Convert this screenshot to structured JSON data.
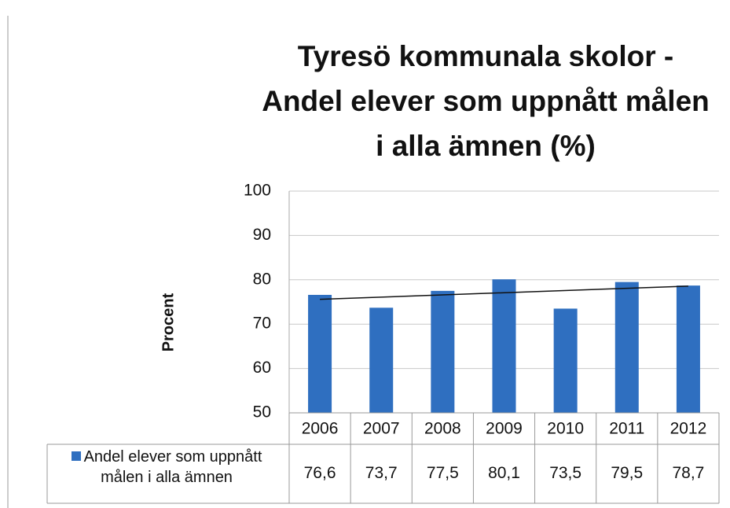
{
  "chart_data": {
    "type": "bar",
    "title": [
      "Tyresö kommunala skolor -",
      "Andel elever som uppnått målen",
      "i alla ämnen (%)"
    ],
    "y_label": "Procent",
    "categories": [
      "2006",
      "2007",
      "2008",
      "2009",
      "2010",
      "2011",
      "2012"
    ],
    "series": [
      {
        "name": "Andel elever som uppnått målen i alla ämnen",
        "color": "#2f6fc0",
        "values": [
          76.6,
          73.7,
          77.5,
          80.1,
          73.5,
          79.5,
          78.7
        ],
        "value_labels": [
          "76,6",
          "73,7",
          "77,5",
          "80,1",
          "73,5",
          "79,5",
          "78,7"
        ]
      }
    ],
    "ylim": [
      50,
      100
    ],
    "yticks": [
      50,
      60,
      70,
      80,
      90,
      100
    ],
    "grid": true,
    "trendline": true,
    "data_table": true
  }
}
